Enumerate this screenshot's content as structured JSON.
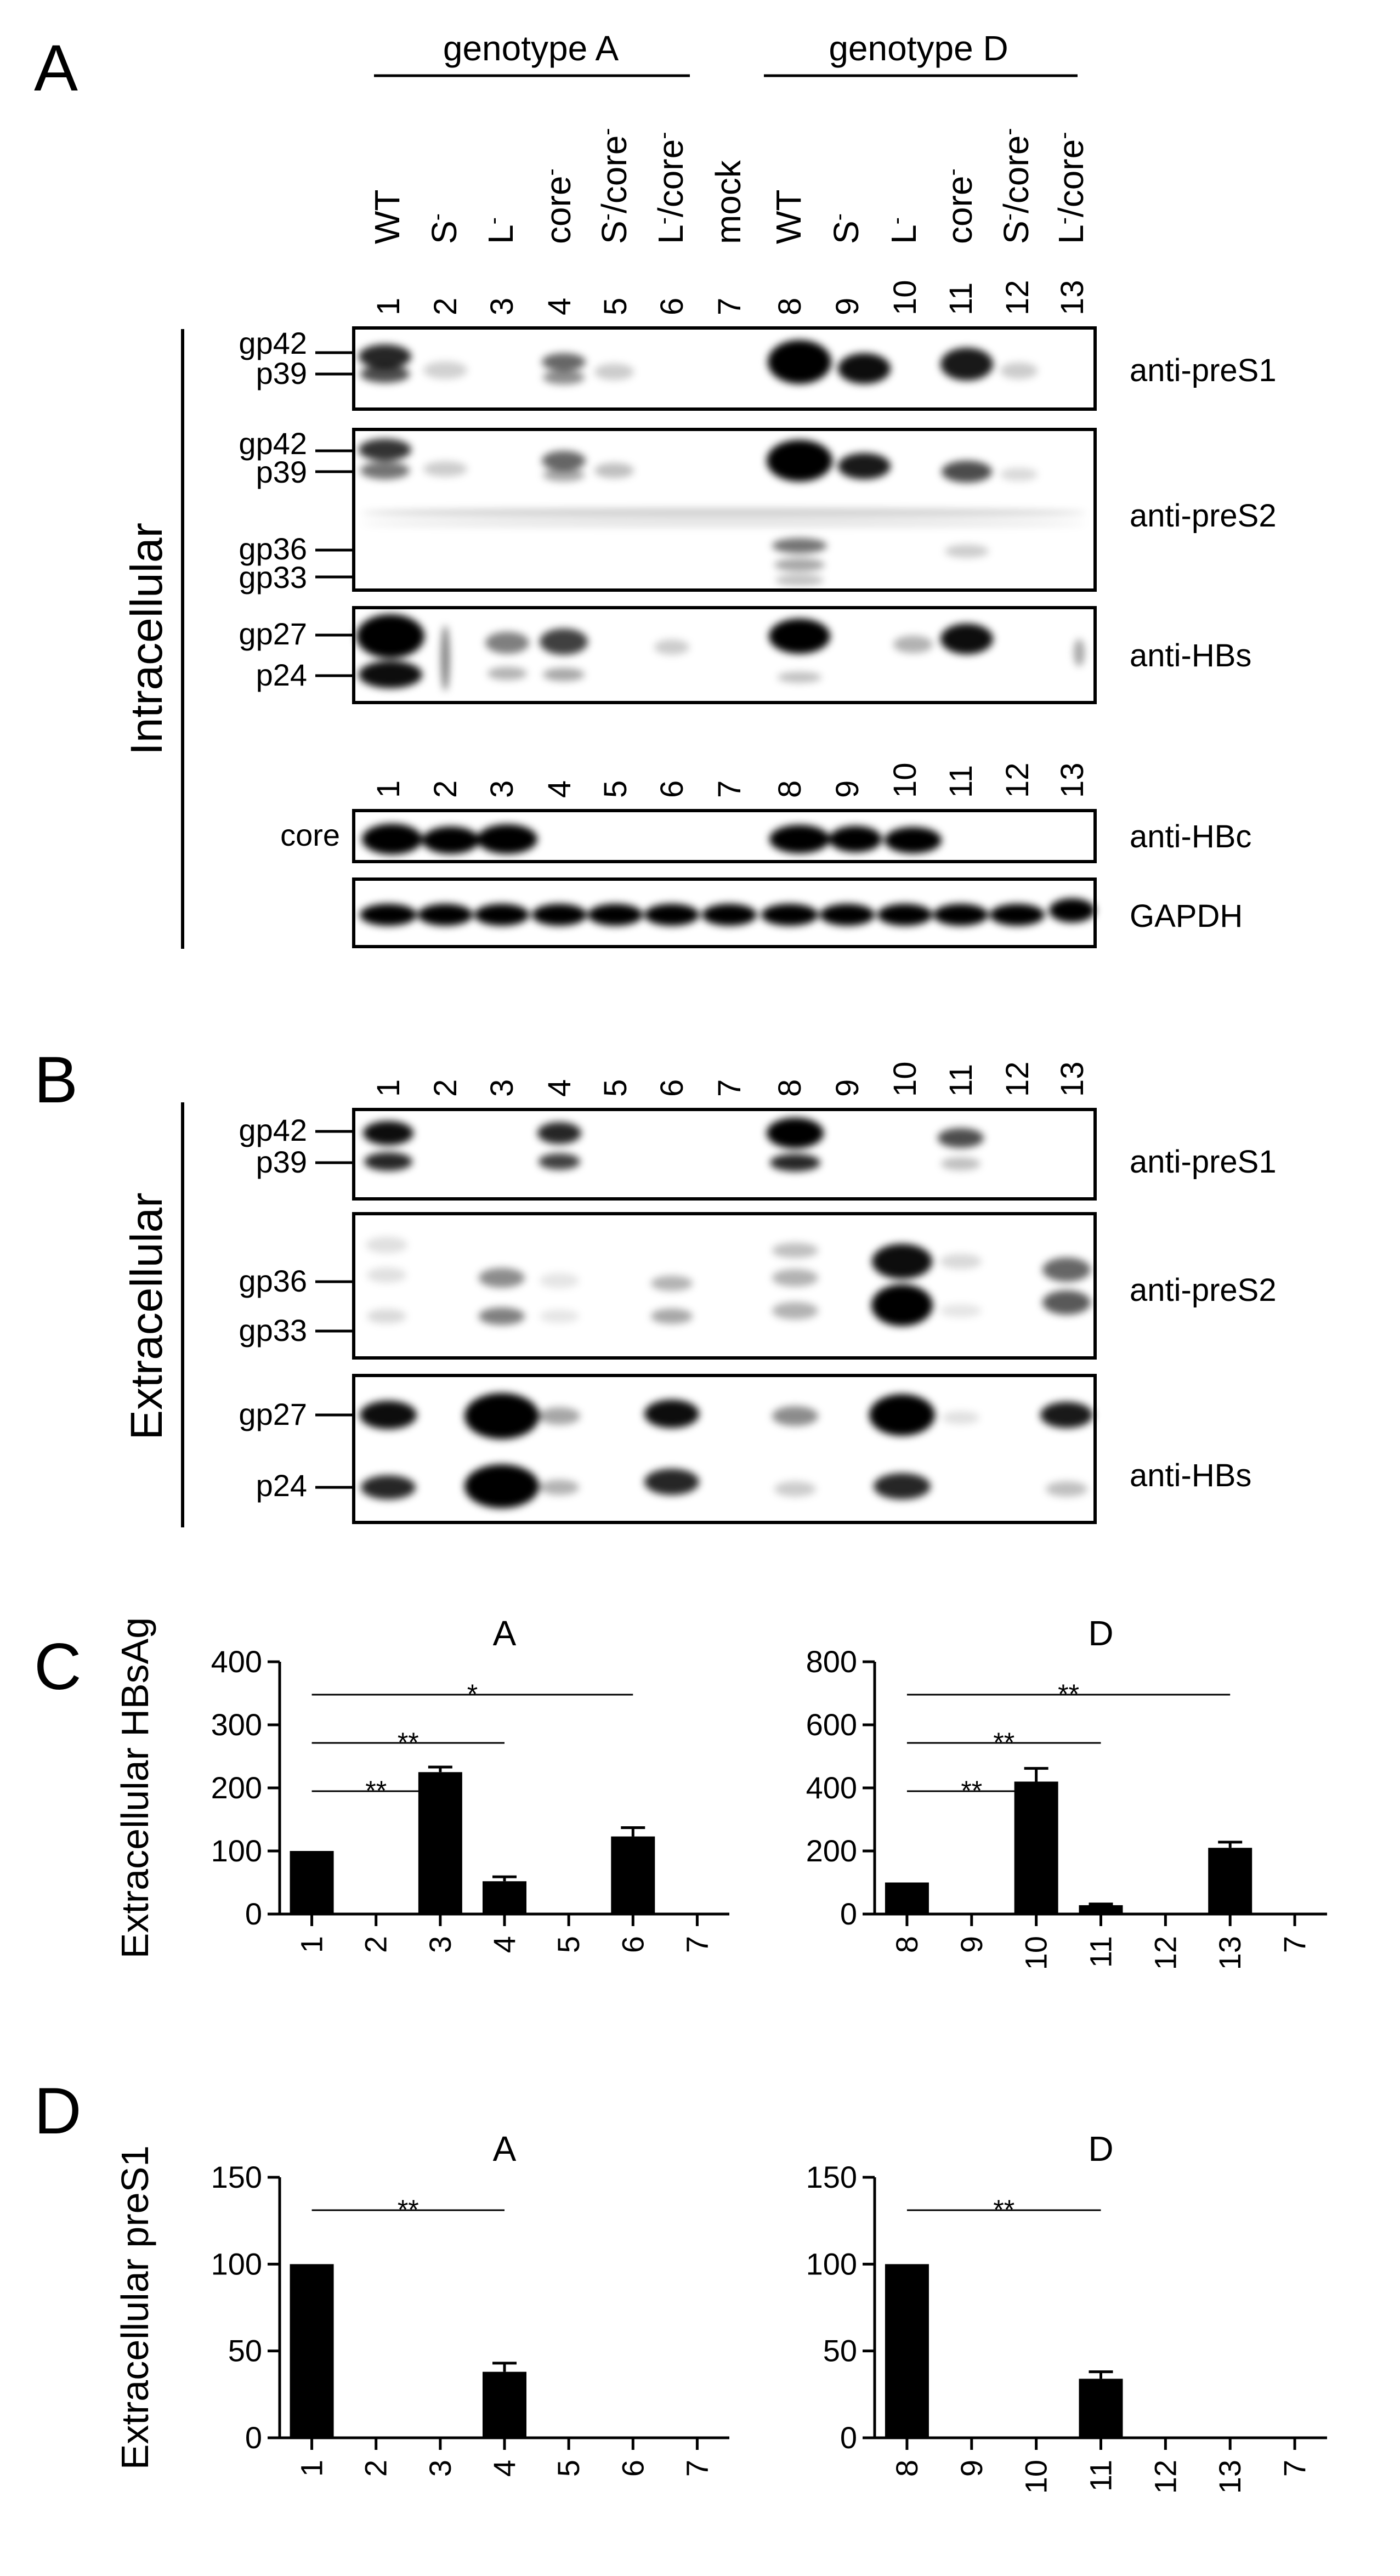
{
  "panels": {
    "A": "A",
    "B": "B",
    "C": "C",
    "D": "D"
  },
  "genotype_headers": [
    "genotype A",
    "genotype D"
  ],
  "construct_labels": [
    {
      "base": "WT",
      "sup": ""
    },
    {
      "base": "S",
      "sup": "-"
    },
    {
      "base": "L",
      "sup": "-"
    },
    {
      "base": "core",
      "sup": "-"
    },
    {
      "base": "S",
      "sup": "-",
      "tail": "/core",
      "sup2": "-"
    },
    {
      "base": "L",
      "sup": "-",
      "tail": "/core",
      "sup2": "-"
    },
    {
      "base": "mock",
      "sup": ""
    },
    {
      "base": "WT",
      "sup": ""
    },
    {
      "base": "S",
      "sup": "-"
    },
    {
      "base": "L",
      "sup": "-"
    },
    {
      "base": "core",
      "sup": "-"
    },
    {
      "base": "S",
      "sup": "-",
      "tail": "/core",
      "sup2": "-"
    },
    {
      "base": "L",
      "sup": "-",
      "tail": "/core",
      "sup2": "-"
    }
  ],
  "lane_numbers": [
    "1",
    "2",
    "3",
    "4",
    "5",
    "6",
    "7",
    "8",
    "9",
    "10",
    "11",
    "12",
    "13"
  ],
  "side_labels": {
    "intracellular": "Intracellular",
    "extracellular": "Extracellular"
  },
  "blots_A": [
    {
      "antibody": "anti-preS1",
      "markers": [
        "gp42",
        "p39"
      ]
    },
    {
      "antibody": "anti-preS2",
      "markers": [
        "gp42",
        "p39",
        "gp36",
        "gp33"
      ]
    },
    {
      "antibody": "anti-HBs",
      "markers": [
        "gp27",
        "p24"
      ]
    },
    {
      "antibody": "anti-HBc",
      "markers": [
        "core"
      ]
    },
    {
      "antibody": "GAPDH",
      "markers": []
    }
  ],
  "blots_B": [
    {
      "antibody": "anti-preS1",
      "markers": [
        "gp42",
        "p39"
      ]
    },
    {
      "antibody": "anti-preS2",
      "markers": [
        "gp36",
        "gp33"
      ]
    },
    {
      "antibody": "anti-HBs",
      "markers": [
        "gp27",
        "p24"
      ]
    }
  ],
  "chart_data": [
    {
      "type": "bar",
      "panel": "C",
      "title": "A",
      "categories": [
        "1",
        "2",
        "3",
        "4",
        "5",
        "6",
        "7"
      ],
      "values": [
        100,
        0,
        225,
        52,
        0,
        123,
        0
      ],
      "errors": [
        0,
        0,
        8,
        7,
        0,
        14,
        0
      ],
      "ylabel": "Extracellular HBsAg",
      "ylim": [
        0,
        400
      ],
      "yticks": [
        "0",
        "100",
        "200",
        "300",
        "400"
      ],
      "significance": [
        {
          "from": "1",
          "to": "3",
          "label": "**"
        },
        {
          "from": "1",
          "to": "4",
          "label": "**"
        },
        {
          "from": "1",
          "to": "6",
          "label": "*"
        }
      ]
    },
    {
      "type": "bar",
      "panel": "C",
      "title": "D",
      "categories": [
        "8",
        "9",
        "10",
        "11",
        "12",
        "13",
        "7"
      ],
      "values": [
        100,
        0,
        420,
        28,
        0,
        210,
        0
      ],
      "errors": [
        0,
        0,
        42,
        4,
        0,
        18,
        0
      ],
      "ylabel": "",
      "ylim": [
        0,
        800
      ],
      "yticks": [
        "0",
        "200",
        "400",
        "600",
        "800"
      ],
      "significance": [
        {
          "from": "8",
          "to": "10",
          "label": "**"
        },
        {
          "from": "8",
          "to": "11",
          "label": "**"
        },
        {
          "from": "8",
          "to": "13",
          "label": "**"
        }
      ]
    },
    {
      "type": "bar",
      "panel": "D",
      "title": "A",
      "categories": [
        "1",
        "2",
        "3",
        "4",
        "5",
        "6",
        "7"
      ],
      "values": [
        100,
        0,
        0,
        38,
        0,
        0,
        0
      ],
      "errors": [
        0,
        0,
        0,
        5,
        0,
        0,
        0
      ],
      "ylabel": "Extracellular preS1",
      "ylim": [
        0,
        150
      ],
      "yticks": [
        "0",
        "50",
        "100",
        "150"
      ],
      "significance": [
        {
          "from": "1",
          "to": "4",
          "label": "**"
        }
      ]
    },
    {
      "type": "bar",
      "panel": "D",
      "title": "D",
      "categories": [
        "8",
        "9",
        "10",
        "11",
        "12",
        "13",
        "7"
      ],
      "values": [
        100,
        0,
        0,
        34,
        0,
        0,
        0
      ],
      "errors": [
        0,
        0,
        0,
        4,
        0,
        0,
        0
      ],
      "ylabel": "",
      "ylim": [
        0,
        150
      ],
      "yticks": [
        "0",
        "50",
        "100",
        "150"
      ],
      "significance": [
        {
          "from": "8",
          "to": "11",
          "label": "**"
        }
      ]
    }
  ]
}
